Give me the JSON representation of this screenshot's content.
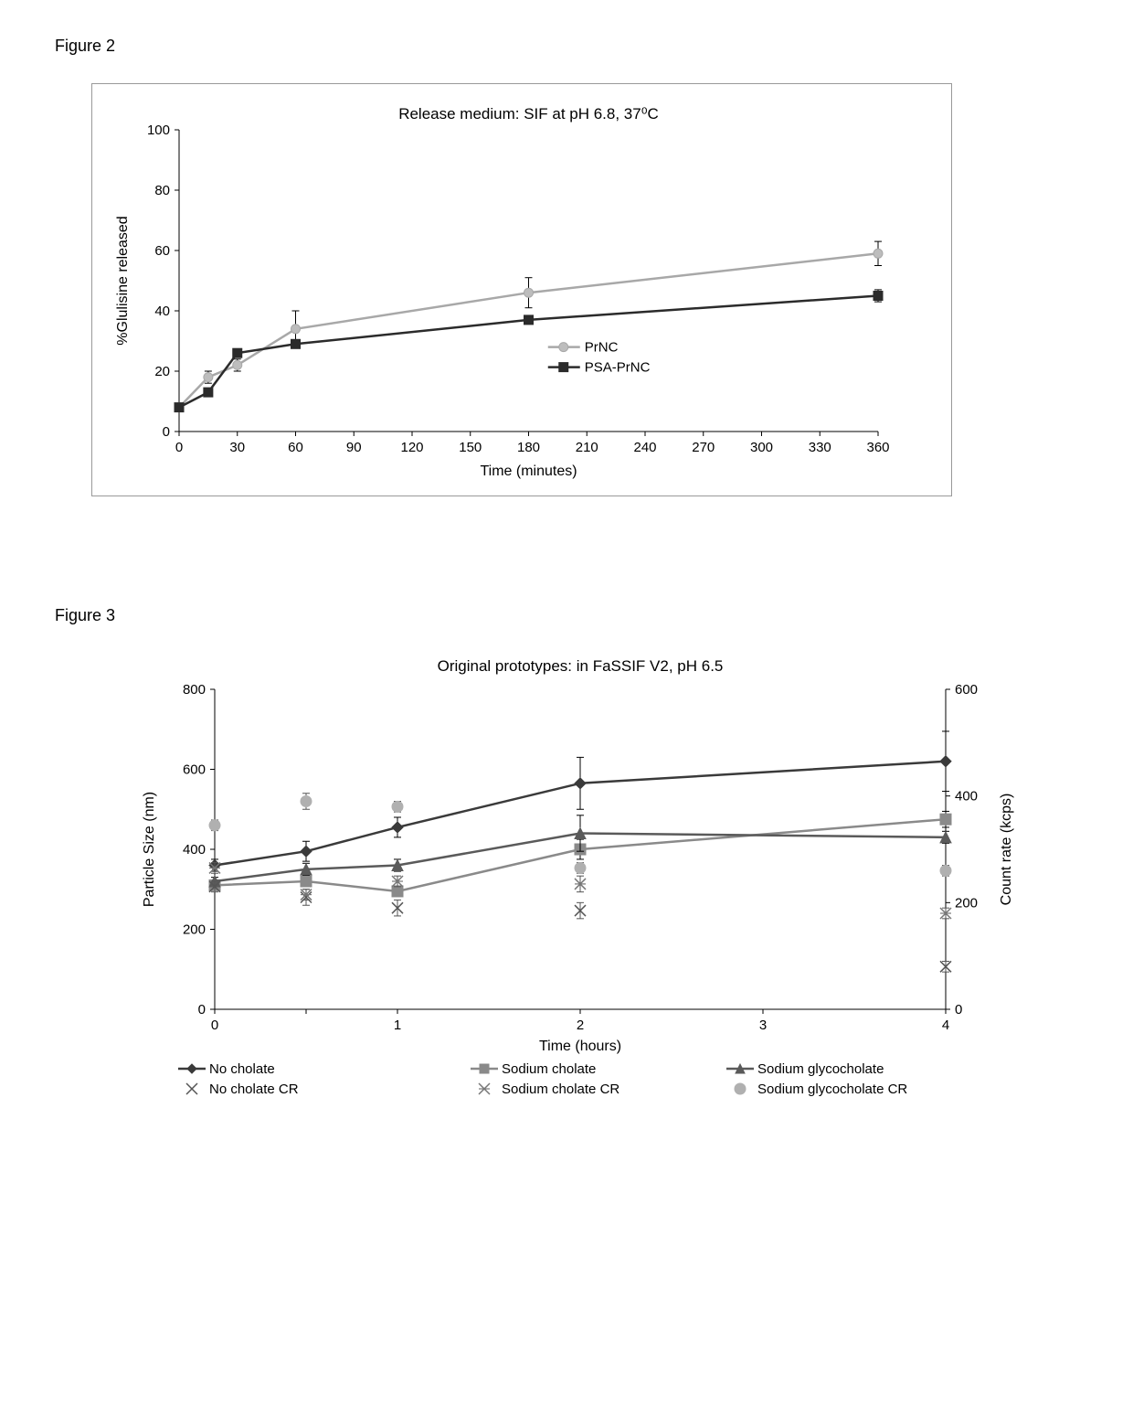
{
  "figure2": {
    "label": "Figure 2",
    "title": "Release medium: SIF at pH 6.8, 37⁰C",
    "xlabel": "Time (minutes)",
    "ylabel": "%Glulisine  released",
    "xlim": [
      0,
      360
    ],
    "ylim": [
      0,
      100
    ],
    "xticks": [
      0,
      30,
      60,
      90,
      120,
      150,
      180,
      210,
      240,
      270,
      300,
      330,
      360
    ],
    "yticks": [
      0,
      20,
      40,
      60,
      80,
      100
    ],
    "series": [
      {
        "name": "PrNC",
        "color": "#a8a8a8",
        "marker": "circle",
        "marker_fill": "#bdbdbd",
        "x": [
          0,
          15,
          30,
          60,
          180,
          360
        ],
        "y": [
          8,
          18,
          22,
          34,
          46,
          59
        ],
        "err": [
          0,
          2,
          2,
          6,
          5,
          4
        ]
      },
      {
        "name": "PSA-PrNC",
        "color": "#2b2b2b",
        "marker": "square",
        "marker_fill": "#2b2b2b",
        "x": [
          0,
          15,
          30,
          60,
          180,
          360
        ],
        "y": [
          8,
          13,
          26,
          29,
          37,
          45
        ],
        "err": [
          0,
          1,
          1,
          1,
          1,
          2
        ]
      }
    ]
  },
  "figure3": {
    "label": "Figure 3",
    "title": "Original prototypes: in FaSSIF V2, pH 6.5",
    "xlabel": "Time (hours)",
    "ylabel": "Particle Size (nm)",
    "ylabel2": "Count rate (kcps)",
    "xlim": [
      0,
      4
    ],
    "ylim": [
      0,
      800
    ],
    "ylim2": [
      0,
      600
    ],
    "xticks": [
      0,
      0.5,
      1,
      2,
      3,
      4
    ],
    "xticklabels": [
      "0",
      "",
      "1",
      "2",
      "3",
      "4"
    ],
    "yticks": [
      0,
      200,
      400,
      600,
      800
    ],
    "yticks2": [
      0,
      200,
      400,
      600
    ],
    "line_series": [
      {
        "name": "No cholate",
        "color": "#3a3a3a",
        "marker": "diamond",
        "x": [
          0,
          0.5,
          1,
          2,
          4
        ],
        "y": [
          360,
          395,
          455,
          565,
          620
        ],
        "err": [
          15,
          25,
          25,
          65,
          75
        ]
      },
      {
        "name": "Sodium cholate",
        "color": "#8a8a8a",
        "marker": "square",
        "x": [
          0,
          0.5,
          1,
          2,
          4
        ],
        "y": [
          310,
          320,
          295,
          400,
          475
        ],
        "err": [
          10,
          10,
          10,
          25,
          20
        ]
      },
      {
        "name": "Sodium glycocholate",
        "color": "#5a5a5a",
        "marker": "triangle",
        "x": [
          0,
          0.5,
          1,
          2,
          4
        ],
        "y": [
          320,
          350,
          360,
          440,
          430
        ],
        "err": [
          10,
          15,
          15,
          45,
          15
        ]
      }
    ],
    "cr_series": [
      {
        "name": "No cholate CR",
        "marker": "x",
        "color": "#555",
        "x": [
          0,
          0.5,
          1,
          2,
          4
        ],
        "y2": [
          230,
          210,
          190,
          185,
          80
        ],
        "err": [
          10,
          15,
          15,
          15,
          10
        ]
      },
      {
        "name": "Sodium cholate CR",
        "marker": "star",
        "color": "#777",
        "x": [
          0,
          0.5,
          1,
          2,
          4
        ],
        "y2": [
          265,
          215,
          240,
          235,
          180
        ],
        "err": [
          10,
          10,
          10,
          15,
          10
        ]
      },
      {
        "name": "Sodium glycocholate CR",
        "marker": "circle",
        "color": "#b0b0b0",
        "x": [
          0,
          0.5,
          1,
          2,
          4
        ],
        "y2": [
          345,
          390,
          380,
          265,
          260
        ],
        "err": [
          10,
          15,
          10,
          10,
          10
        ]
      }
    ]
  }
}
